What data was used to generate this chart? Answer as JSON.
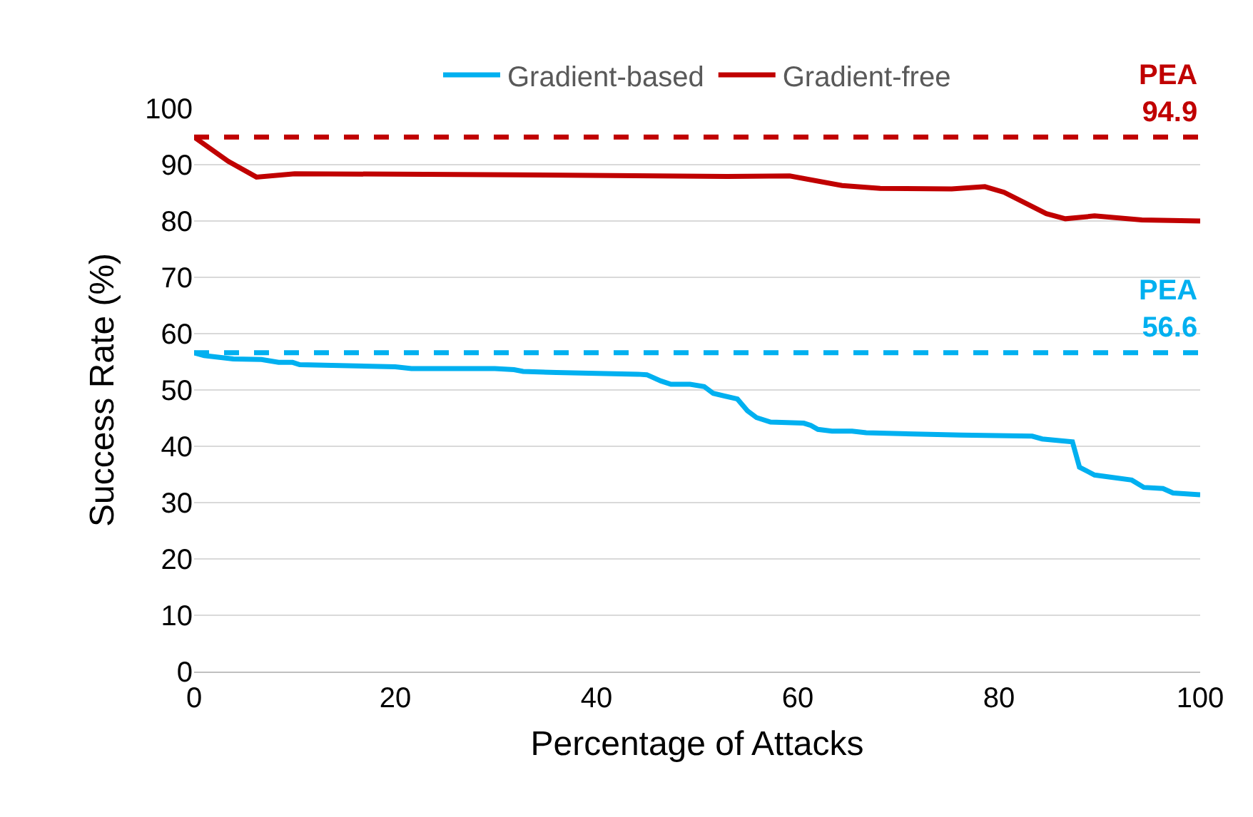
{
  "chart_data": {
    "type": "line",
    "xlabel": "Percentage of Attacks",
    "ylabel": "Success Rate (%)",
    "xlim": [
      0,
      100
    ],
    "xticks": [
      0,
      20,
      40,
      60,
      80,
      100
    ],
    "ylim": [
      0,
      100
    ],
    "yticks": [
      0,
      10,
      20,
      30,
      40,
      50,
      60,
      70,
      80,
      90,
      100
    ],
    "grid": "y",
    "legend": "top",
    "marker": "none",
    "line_style": "solid",
    "series": [
      {
        "name": "Gradient-based",
        "color": "#00b0f0",
        "x": [
          0,
          1,
          3.9,
          6.7,
          8.4,
          9.8,
          10.5,
          12.9,
          20,
          21.6,
          29.9,
          31.8,
          32.7,
          36,
          44.1,
          45,
          46.4,
          47.4,
          49.3,
          50.7,
          51.6,
          54,
          55,
          55.9,
          57.3,
          60.6,
          61.3,
          62,
          63.4,
          65.4,
          66.8,
          76.2,
          83.3,
          84.3,
          87.3,
          88,
          89.5,
          93.2,
          94.4,
          96.3,
          97.3,
          100
        ],
        "values": [
          56.6,
          56.1,
          55.5,
          55.4,
          54.9,
          54.9,
          54.5,
          54.4,
          54.1,
          53.8,
          53.8,
          53.6,
          53.3,
          53.1,
          52.8,
          52.7,
          51.6,
          51,
          51,
          50.6,
          49.4,
          48.4,
          46.3,
          45.1,
          44.3,
          44.1,
          43.7,
          43,
          42.7,
          42.7,
          42.4,
          42,
          41.8,
          41.3,
          40.8,
          36.3,
          34.9,
          34,
          32.7,
          32.5,
          31.7,
          31.4
        ]
      },
      {
        "name": "Gradient-free",
        "color": "#c00000",
        "x": [
          0,
          3.4,
          6.2,
          10,
          32.2,
          53,
          59.2,
          64.4,
          68.2,
          75.3,
          78.6,
          80.5,
          84.7,
          86.6,
          89.5,
          94.2,
          100
        ],
        "values": [
          94.9,
          90.6,
          87.8,
          88.4,
          88.2,
          87.9,
          88,
          86.3,
          85.8,
          85.7,
          86.1,
          85.1,
          81.3,
          80.4,
          80.9,
          80.2,
          80
        ]
      }
    ],
    "ref_lines": [
      {
        "axis": "y",
        "value": 94.9,
        "label": "PEA\n94.9",
        "color": "#c00000",
        "line_style": "dashed"
      },
      {
        "axis": "y",
        "value": 56.6,
        "label": "PEA\n56.6",
        "color": "#00b0f0",
        "line_style": "dashed"
      }
    ]
  }
}
